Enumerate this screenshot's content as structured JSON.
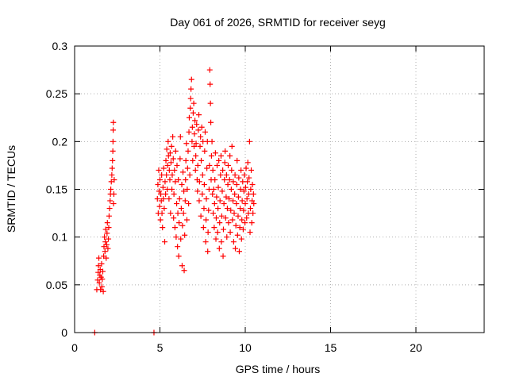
{
  "chart_data": {
    "type": "scatter",
    "title": "Day 061 of 2026, SRMTID for receiver seyg",
    "xlabel": "GPS time / hours",
    "ylabel": "SRMTID / TECUs",
    "xlim": [
      0,
      24
    ],
    "ylim": [
      0,
      0.3
    ],
    "xticks": [
      0,
      5,
      10,
      15,
      20
    ],
    "xtick_labels": [
      "0",
      "5",
      "10",
      "15",
      "20"
    ],
    "yticks": [
      0,
      0.05,
      0.1,
      0.15,
      0.2,
      0.25,
      0.3
    ],
    "ytick_labels": [
      "0",
      "0.05",
      "0.1",
      "0.15",
      "0.2",
      "0.25",
      "0.3"
    ],
    "grid": true,
    "marker": "+",
    "color": "#ff0000",
    "series": [
      {
        "name": "SRMTID",
        "points": [
          [
            1.18,
            0.0
          ],
          [
            4.65,
            0.0
          ],
          [
            1.3,
            0.045
          ],
          [
            1.35,
            0.055
          ],
          [
            1.38,
            0.063
          ],
          [
            1.4,
            0.07
          ],
          [
            1.42,
            0.078
          ],
          [
            1.45,
            0.052
          ],
          [
            1.48,
            0.06
          ],
          [
            1.5,
            0.066
          ],
          [
            1.52,
            0.045
          ],
          [
            1.55,
            0.058
          ],
          [
            1.58,
            0.072
          ],
          [
            1.6,
            0.048
          ],
          [
            1.62,
            0.056
          ],
          [
            1.65,
            0.064
          ],
          [
            1.68,
            0.043
          ],
          [
            1.7,
            0.08
          ],
          [
            1.72,
            0.09
          ],
          [
            1.75,
            0.1
          ],
          [
            1.78,
            0.085
          ],
          [
            1.8,
            0.095
          ],
          [
            1.82,
            0.108
          ],
          [
            1.85,
            0.078
          ],
          [
            1.88,
            0.092
          ],
          [
            1.9,
            0.104
          ],
          [
            1.92,
            0.115
          ],
          [
            1.95,
            0.088
          ],
          [
            1.98,
            0.098
          ],
          [
            2.0,
            0.11
          ],
          [
            2.02,
            0.122
          ],
          [
            2.05,
            0.13
          ],
          [
            2.08,
            0.138
          ],
          [
            2.1,
            0.145
          ],
          [
            2.12,
            0.15
          ],
          [
            2.15,
            0.158
          ],
          [
            2.18,
            0.165
          ],
          [
            2.2,
            0.172
          ],
          [
            2.22,
            0.18
          ],
          [
            2.24,
            0.19
          ],
          [
            2.25,
            0.2
          ],
          [
            2.26,
            0.212
          ],
          [
            2.27,
            0.22
          ],
          [
            2.28,
            0.135
          ],
          [
            2.3,
            0.145
          ],
          [
            2.32,
            0.16
          ],
          [
            4.85,
            0.14
          ],
          [
            4.88,
            0.155
          ],
          [
            4.9,
            0.125
          ],
          [
            4.93,
            0.17
          ],
          [
            4.95,
            0.148
          ],
          [
            4.98,
            0.132
          ],
          [
            5.0,
            0.16
          ],
          [
            5.03,
            0.118
          ],
          [
            5.05,
            0.145
          ],
          [
            5.08,
            0.138
          ],
          [
            5.1,
            0.165
          ],
          [
            5.12,
            0.125
          ],
          [
            5.15,
            0.11
          ],
          [
            5.18,
            0.152
          ],
          [
            5.2,
            0.14
          ],
          [
            5.22,
            0.172
          ],
          [
            5.25,
            0.13
          ],
          [
            5.28,
            0.095
          ],
          [
            5.3,
            0.158
          ],
          [
            5.33,
            0.145
          ],
          [
            5.35,
            0.18
          ],
          [
            5.38,
            0.165
          ],
          [
            5.4,
            0.192
          ],
          [
            5.43,
            0.15
          ],
          [
            5.45,
            0.175
          ],
          [
            5.48,
            0.2
          ],
          [
            5.5,
            0.185
          ],
          [
            5.53,
            0.14
          ],
          [
            5.55,
            0.17
          ],
          [
            5.58,
            0.16
          ],
          [
            5.6,
            0.188
          ],
          [
            5.62,
            0.125
          ],
          [
            5.65,
            0.178
          ],
          [
            5.68,
            0.195
          ],
          [
            5.7,
            0.15
          ],
          [
            5.72,
            0.165
          ],
          [
            5.75,
            0.205
          ],
          [
            5.78,
            0.182
          ],
          [
            5.8,
            0.12
          ],
          [
            5.82,
            0.145
          ],
          [
            5.85,
            0.17
          ],
          [
            5.88,
            0.11
          ],
          [
            5.9,
            0.158
          ],
          [
            5.92,
            0.19
          ],
          [
            5.95,
            0.1
          ],
          [
            5.98,
            0.135
          ],
          [
            6.0,
            0.175
          ],
          [
            6.03,
            0.09
          ],
          [
            6.05,
            0.125
          ],
          [
            6.08,
            0.16
          ],
          [
            6.1,
            0.08
          ],
          [
            6.12,
            0.115
          ],
          [
            6.15,
            0.14
          ],
          [
            6.18,
            0.182
          ],
          [
            6.2,
            0.205
          ],
          [
            6.22,
            0.098
          ],
          [
            6.25,
            0.13
          ],
          [
            6.28,
            0.155
          ],
          [
            6.3,
            0.07
          ],
          [
            6.32,
            0.112
          ],
          [
            6.35,
            0.168
          ],
          [
            6.38,
            0.125
          ],
          [
            6.4,
            0.148
          ],
          [
            6.42,
            0.065
          ],
          [
            6.45,
            0.102
          ],
          [
            6.48,
            0.138
          ],
          [
            6.5,
            0.16
          ],
          [
            6.52,
            0.18
          ],
          [
            6.55,
            0.198
          ],
          [
            6.58,
            0.118
          ],
          [
            6.6,
            0.15
          ],
          [
            6.62,
            0.172
          ],
          [
            6.65,
            0.19
          ],
          [
            6.68,
            0.135
          ],
          [
            6.7,
            0.21
          ],
          [
            6.72,
            0.225
          ],
          [
            6.75,
            0.165
          ],
          [
            6.78,
            0.235
          ],
          [
            6.8,
            0.245
          ],
          [
            6.82,
            0.255
          ],
          [
            6.85,
            0.265
          ],
          [
            6.88,
            0.2
          ],
          [
            6.9,
            0.215
          ],
          [
            6.92,
            0.18
          ],
          [
            6.95,
            0.23
          ],
          [
            6.98,
            0.24
          ],
          [
            7.0,
            0.195
          ],
          [
            7.02,
            0.208
          ],
          [
            7.05,
            0.222
          ],
          [
            7.08,
            0.17
          ],
          [
            7.1,
            0.185
          ],
          [
            7.12,
            0.198
          ],
          [
            7.15,
            0.218
          ],
          [
            7.18,
            0.16
          ],
          [
            7.2,
            0.148
          ],
          [
            7.22,
            0.175
          ],
          [
            7.25,
            0.212
          ],
          [
            7.28,
            0.228
          ],
          [
            7.3,
            0.138
          ],
          [
            7.32,
            0.158
          ],
          [
            7.35,
            0.195
          ],
          [
            7.38,
            0.205
          ],
          [
            7.4,
            0.122
          ],
          [
            7.42,
            0.18
          ],
          [
            7.45,
            0.215
          ],
          [
            7.48,
            0.145
          ],
          [
            7.5,
            0.165
          ],
          [
            7.52,
            0.2
          ],
          [
            7.55,
            0.11
          ],
          [
            7.58,
            0.13
          ],
          [
            7.6,
            0.155
          ],
          [
            7.62,
            0.19
          ],
          [
            7.65,
            0.21
          ],
          [
            7.68,
            0.095
          ],
          [
            7.7,
            0.118
          ],
          [
            7.72,
            0.14
          ],
          [
            7.75,
            0.172
          ],
          [
            7.78,
            0.2
          ],
          [
            7.8,
            0.085
          ],
          [
            7.82,
            0.105
          ],
          [
            7.85,
            0.128
          ],
          [
            7.88,
            0.15
          ],
          [
            7.9,
            0.175
          ],
          [
            7.92,
            0.275
          ],
          [
            7.94,
            0.26
          ],
          [
            7.96,
            0.24
          ],
          [
            7.98,
            0.22
          ],
          [
            8.0,
            0.16
          ],
          [
            8.02,
            0.185
          ],
          [
            8.05,
            0.2
          ],
          [
            8.08,
            0.145
          ],
          [
            8.1,
            0.17
          ],
          [
            8.12,
            0.125
          ],
          [
            8.15,
            0.15
          ],
          [
            8.18,
            0.11
          ],
          [
            8.2,
            0.135
          ],
          [
            8.22,
            0.16
          ],
          [
            8.25,
            0.188
          ],
          [
            8.28,
            0.098
          ],
          [
            8.3,
            0.12
          ],
          [
            8.32,
            0.142
          ],
          [
            8.35,
            0.175
          ],
          [
            8.38,
            0.105
          ],
          [
            8.4,
            0.13
          ],
          [
            8.42,
            0.152
          ],
          [
            8.45,
            0.18
          ],
          [
            8.48,
            0.088
          ],
          [
            8.5,
            0.115
          ],
          [
            8.52,
            0.138
          ],
          [
            8.55,
            0.165
          ],
          [
            8.58,
            0.185
          ],
          [
            8.6,
            0.095
          ],
          [
            8.62,
            0.122
          ],
          [
            8.65,
            0.148
          ],
          [
            8.68,
            0.17
          ],
          [
            8.7,
            0.08
          ],
          [
            8.72,
            0.108
          ],
          [
            8.75,
            0.135
          ],
          [
            8.78,
            0.16
          ],
          [
            8.8,
            0.178
          ],
          [
            8.82,
            0.19
          ],
          [
            8.85,
            0.12
          ],
          [
            8.88,
            0.142
          ],
          [
            8.9,
            0.165
          ],
          [
            8.92,
            0.1
          ],
          [
            8.95,
            0.13
          ],
          [
            8.98,
            0.155
          ],
          [
            9.0,
            0.175
          ],
          [
            9.02,
            0.115
          ],
          [
            9.05,
            0.14
          ],
          [
            9.08,
            0.16
          ],
          [
            9.1,
            0.185
          ],
          [
            9.12,
            0.105
          ],
          [
            9.15,
            0.128
          ],
          [
            9.18,
            0.15
          ],
          [
            9.2,
            0.17
          ],
          [
            9.22,
            0.195
          ],
          [
            9.25,
            0.118
          ],
          [
            9.28,
            0.138
          ],
          [
            9.3,
            0.158
          ],
          [
            9.32,
            0.095
          ],
          [
            9.35,
            0.125
          ],
          [
            9.38,
            0.145
          ],
          [
            9.4,
            0.165
          ],
          [
            9.42,
            0.088
          ],
          [
            9.45,
            0.112
          ],
          [
            9.48,
            0.135
          ],
          [
            9.5,
            0.155
          ],
          [
            9.52,
            0.18
          ],
          [
            9.55,
            0.102
          ],
          [
            9.58,
            0.122
          ],
          [
            9.6,
            0.142
          ],
          [
            9.62,
            0.162
          ],
          [
            9.65,
            0.085
          ],
          [
            9.68,
            0.11
          ],
          [
            9.7,
            0.13
          ],
          [
            9.72,
            0.15
          ],
          [
            9.75,
            0.17
          ],
          [
            9.78,
            0.098
          ],
          [
            9.8,
            0.118
          ],
          [
            9.82,
            0.138
          ],
          [
            9.85,
            0.158
          ],
          [
            9.88,
            0.108
          ],
          [
            9.9,
            0.128
          ],
          [
            9.92,
            0.148
          ],
          [
            9.95,
            0.165
          ],
          [
            9.98,
            0.115
          ],
          [
            10.0,
            0.135
          ],
          [
            10.02,
            0.152
          ],
          [
            10.05,
            0.172
          ],
          [
            10.08,
            0.12
          ],
          [
            10.1,
            0.14
          ],
          [
            10.12,
            0.158
          ],
          [
            10.15,
            0.178
          ],
          [
            10.18,
            0.125
          ],
          [
            10.2,
            0.145
          ],
          [
            10.22,
            0.162
          ],
          [
            10.25,
            0.2
          ],
          [
            10.28,
            0.105
          ],
          [
            10.3,
            0.13
          ],
          [
            10.32,
            0.15
          ],
          [
            10.35,
            0.17
          ],
          [
            10.38,
            0.115
          ],
          [
            10.4,
            0.138
          ],
          [
            10.42,
            0.155
          ],
          [
            10.45,
            0.125
          ],
          [
            10.48,
            0.145
          ],
          [
            10.5,
            0.135
          ]
        ]
      }
    ]
  }
}
